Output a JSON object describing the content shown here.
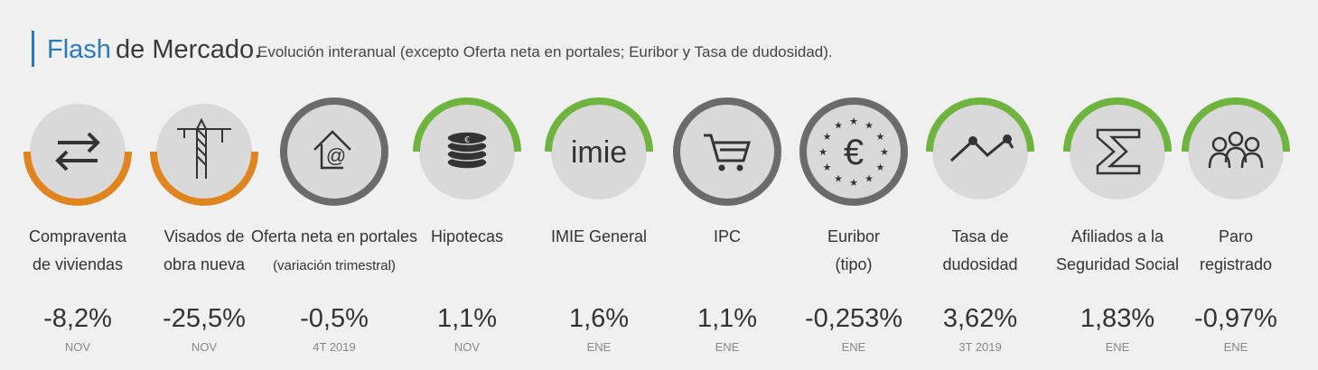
{
  "header": {
    "title_accent": "Flash",
    "title_rest": "de Mercado.",
    "subtitle": "Evolución interanual (excepto Oferta neta en portales; Euribor y Tasa de dudosidad)."
  },
  "items": [
    {
      "label": [
        "Compraventa",
        "de viviendas"
      ],
      "value": "-8,2%",
      "period": "NOV",
      "ring": "bottom",
      "ring_color": "#e08420"
    },
    {
      "label": [
        "Visados de",
        "obra nueva"
      ],
      "value": "-25,5%",
      "period": "NOV",
      "ring": "bottom",
      "ring_color": "#e08420"
    },
    {
      "label": [
        "Oferta neta en portales",
        "(variación trimestral)"
      ],
      "value": "-0,5%",
      "period": "4T 2019",
      "ring": "full",
      "ring_color": "#6b6b6b"
    },
    {
      "label": [
        "Hipotecas"
      ],
      "value": "1,1%",
      "period": "NOV",
      "ring": "top",
      "ring_color": "#6fb43f"
    },
    {
      "label": [
        "IMIE General"
      ],
      "value": "1,6%",
      "period": "ENE",
      "ring": "top",
      "ring_color": "#6fb43f"
    },
    {
      "label": [
        "IPC"
      ],
      "value": "1,1%",
      "period": "ENE",
      "ring": "full",
      "ring_color": "#6b6b6b"
    },
    {
      "label": [
        "Euribor",
        "(tipo)"
      ],
      "value": "-0,253%",
      "period": "ENE",
      "ring": "full",
      "ring_color": "#6b6b6b"
    },
    {
      "label": [
        "Tasa de",
        "dudosidad"
      ],
      "value": "3,62%",
      "period": "3T 2019",
      "ring": "top",
      "ring_color": "#6fb43f"
    },
    {
      "label": [
        "Afiliados a la",
        "Seguridad Social"
      ],
      "value": "1,83%",
      "period": "ENE",
      "ring": "top",
      "ring_color": "#6fb43f"
    },
    {
      "label": [
        "Paro",
        "registrado"
      ],
      "value": "-0,97%",
      "period": "ENE",
      "ring": "top",
      "ring_color": "#6fb43f"
    }
  ]
}
